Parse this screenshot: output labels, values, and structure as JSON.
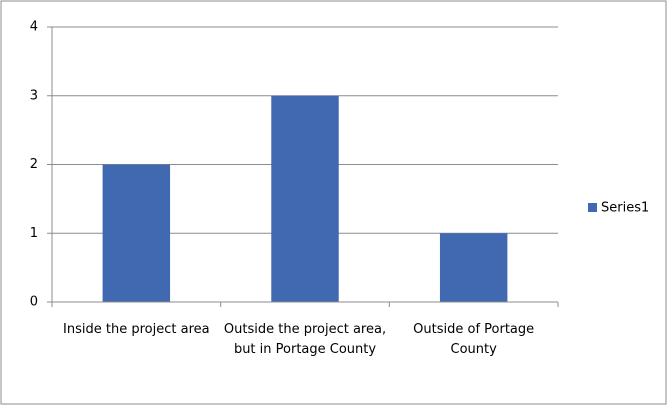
{
  "chart_data": {
    "type": "bar",
    "categories": [
      "Inside the project area",
      "Outside the project area, but in Portage County",
      "Outside of Portage County"
    ],
    "series": [
      {
        "name": "Series1",
        "color": "#4169b1",
        "values": [
          2,
          3,
          1
        ]
      }
    ],
    "ylim": [
      0,
      4
    ],
    "yticks": [
      0,
      1,
      2,
      3,
      4
    ],
    "grid": true,
    "legend": "right"
  }
}
